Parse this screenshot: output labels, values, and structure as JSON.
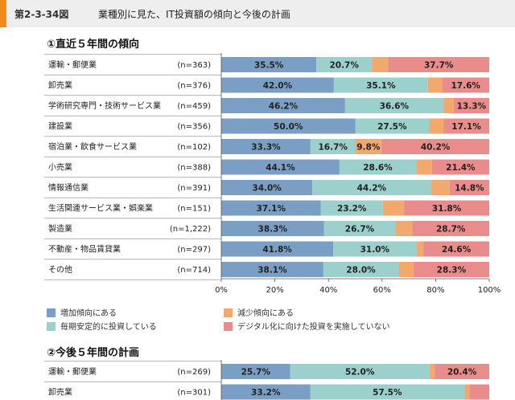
{
  "header": {
    "figure_number": "第2-3-34図",
    "title": "業種別に見た、IT投資額の傾向と今後の計画"
  },
  "colors": {
    "increase": "#7b9fc4",
    "stable": "#9bd0cc",
    "decrease": "#f2a96e",
    "not_implemented": "#ea8c8c"
  },
  "chart_data": [
    {
      "type": "bar",
      "stacked": true,
      "orientation": "horizontal",
      "title": "①直近５年間の傾向",
      "categories": [
        "運輸・郵便業",
        "卸売業",
        "学術研究専門・技術サービス業",
        "建設業",
        "宿泊業・飲食サービス業",
        "小売業",
        "情報通信業",
        "生活関連サービス業・娯楽業",
        "製造業",
        "不動産・物品賃貸業",
        "その他"
      ],
      "n_labels": [
        "(n=363)",
        "(n=376)",
        "(n=459)",
        "(n=356)",
        "(n=102)",
        "(n=388)",
        "(n=391)",
        "(n=151)",
        "(n=1,222)",
        "(n=297)",
        "(n=714)"
      ],
      "series": [
        {
          "name": "増加傾向にある",
          "values": [
            35.5,
            42.0,
            46.2,
            50.0,
            33.3,
            44.1,
            34.0,
            37.1,
            38.3,
            41.8,
            38.1
          ]
        },
        {
          "name": "毎期安定的に投資している",
          "values": [
            20.7,
            35.1,
            36.6,
            27.5,
            16.7,
            28.6,
            44.2,
            23.2,
            26.7,
            31.0,
            28.0
          ]
        },
        {
          "name": "減少傾向にある",
          "values": [
            6.1,
            5.3,
            3.9,
            5.4,
            9.8,
            5.9,
            7.0,
            7.9,
            6.3,
            2.6,
            5.6
          ]
        },
        {
          "name": "デジタル化に向けた投資を実施していない",
          "values": [
            37.7,
            17.6,
            13.3,
            17.1,
            40.2,
            21.4,
            14.8,
            31.8,
            28.7,
            24.6,
            28.3
          ]
        }
      ],
      "label_values": [
        [
          "35.5%",
          "20.7%",
          "",
          "37.7%"
        ],
        [
          "42.0%",
          "35.1%",
          "",
          "17.6%"
        ],
        [
          "46.2%",
          "36.6%",
          "",
          "13.3%"
        ],
        [
          "50.0%",
          "27.5%",
          "",
          "17.1%"
        ],
        [
          "33.3%",
          "16.7%",
          "9.8%",
          "40.2%"
        ],
        [
          "44.1%",
          "28.6%",
          "",
          "21.4%"
        ],
        [
          "34.0%",
          "44.2%",
          "",
          "14.8%"
        ],
        [
          "37.1%",
          "23.2%",
          "",
          "31.8%"
        ],
        [
          "38.3%",
          "26.7%",
          "",
          "28.7%"
        ],
        [
          "41.8%",
          "31.0%",
          "",
          "24.6%"
        ],
        [
          "38.1%",
          "28.0%",
          "",
          "28.3%"
        ]
      ],
      "xlim": [
        0,
        100
      ],
      "xticks": [
        "0%",
        "20%",
        "40%",
        "60%",
        "80%",
        "100%"
      ],
      "grid": false,
      "legend_position": "bottom"
    },
    {
      "type": "bar",
      "stacked": true,
      "orientation": "horizontal",
      "title": "②今後５年間の計画",
      "categories": [
        "運輸・郵便業",
        "卸売業"
      ],
      "n_labels": [
        "(n=269)",
        "(n=301)"
      ],
      "series": [
        {
          "name": "増加傾向にある",
          "values": [
            25.7,
            33.2
          ]
        },
        {
          "name": "毎期安定的に投資している",
          "values": [
            52.0,
            57.5
          ]
        },
        {
          "name": "減少傾向にある",
          "values": [
            1.9,
            1.9
          ]
        },
        {
          "name": "デジタル化に向けた投資を実施していない",
          "values": [
            20.4,
            7.4
          ]
        }
      ],
      "label_values": [
        [
          "25.7%",
          "52.0%",
          "",
          "20.4%"
        ],
        [
          "33.2%",
          "57.5%",
          "",
          ""
        ]
      ]
    }
  ],
  "legend": [
    {
      "label": "増加傾向にある",
      "color": "#7b9fc4"
    },
    {
      "label": "減少傾向にある",
      "color": "#f2a96e"
    },
    {
      "label": "毎期安定的に投資している",
      "color": "#9bd0cc"
    },
    {
      "label": "デジタル化に向けた投資を実施していない",
      "color": "#ea8c8c"
    }
  ]
}
